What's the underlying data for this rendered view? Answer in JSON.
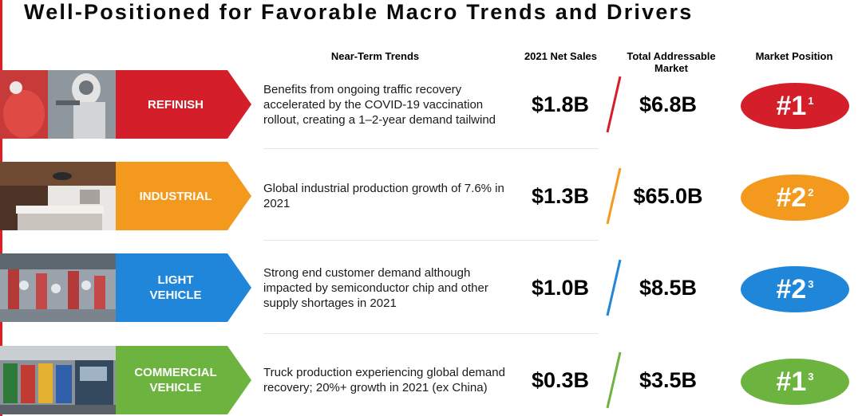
{
  "title": "Well-Positioned for Favorable Macro Trends and Drivers",
  "headers": {
    "trends": "Near-Term Trends",
    "net_sales": "2021 Net Sales",
    "tam": "Total Addressable\nMarket",
    "position": "Market Position"
  },
  "rows": [
    {
      "segment": "REFINISH",
      "color": "#d41f2a",
      "photo": "painter-spraying-car-photo",
      "trend": "Benefits from ongoing traffic recovery accelerated by the COVID-19 vaccination rollout, creating a 1–2-year demand tailwind",
      "net_sales": "$1.8B",
      "tam": "$6.8B",
      "rank": "#1",
      "footnote": "1"
    },
    {
      "segment": "INDUSTRIAL",
      "color": "#f39a1e",
      "photo": "modern-kitchen-photo",
      "trend": "Global industrial production growth of 7.6% in 2021",
      "net_sales": "$1.3B",
      "tam": "$65.0B",
      "rank": "#2",
      "footnote": "2"
    },
    {
      "segment": "LIGHT\nVEHICLE",
      "color": "#1f86d9",
      "photo": "robotic-car-assembly-photo",
      "trend": "Strong end customer demand although impacted by semiconductor chip and other supply shortages in 2021",
      "net_sales": "$1.0B",
      "tam": "$8.5B",
      "rank": "#2",
      "footnote": "3"
    },
    {
      "segment": "COMMERCIAL\nVEHICLE",
      "color": "#6db33f",
      "photo": "truck-production-line-photo",
      "trend": "Truck production experiencing global demand recovery; 20%+ growth in 2021 (ex China)",
      "net_sales": "$0.3B",
      "tam": "$3.5B",
      "rank": "#1",
      "footnote": "3"
    }
  ]
}
